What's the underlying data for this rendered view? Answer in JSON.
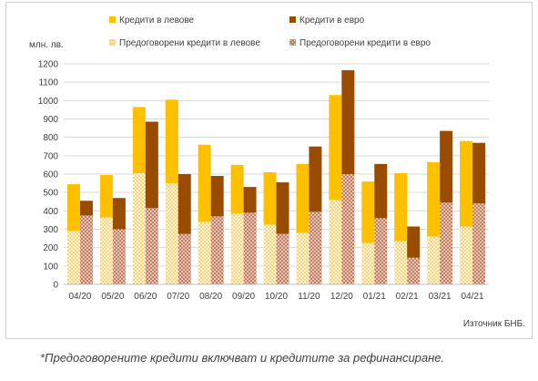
{
  "chart_data": {
    "type": "bar",
    "stacked_pairs": true,
    "ylabel": "млн. лв.",
    "ylim": [
      0,
      1200
    ],
    "yticks": [
      0,
      100,
      200,
      300,
      400,
      500,
      600,
      700,
      800,
      900,
      1000,
      1100,
      1200
    ],
    "grid": true,
    "legend_position": "top",
    "categories": [
      "04/20",
      "05/20",
      "06/20",
      "07/20",
      "08/20",
      "09/20",
      "10/20",
      "11/20",
      "12/20",
      "01/21",
      "02/21",
      "03/21",
      "04/21"
    ],
    "series": [
      {
        "name": "Кредити в левове",
        "color": "#FFC000",
        "pattern": "solid",
        "group": "bgn",
        "values": [
          255,
          230,
          360,
          455,
          420,
          265,
          285,
          375,
          570,
          335,
          370,
          405,
          465
        ]
      },
      {
        "name": "Кредити в евро",
        "color": "#994C00",
        "pattern": "solid",
        "group": "eur",
        "values": [
          80,
          170,
          470,
          325,
          220,
          140,
          280,
          355,
          565,
          295,
          170,
          390,
          330
        ]
      },
      {
        "name": "Предоговорени кредити в левове",
        "color": "#FFE699",
        "pattern": "dots",
        "group": "bgn",
        "values": [
          290,
          365,
          605,
          550,
          340,
          385,
          325,
          280,
          460,
          225,
          235,
          260,
          315
        ]
      },
      {
        "name": "Предоговорени кредити в евро",
        "color": "#C9876E",
        "pattern": "hatch",
        "group": "eur",
        "values": [
          375,
          300,
          415,
          275,
          370,
          390,
          275,
          395,
          600,
          360,
          145,
          445,
          440
        ]
      }
    ]
  },
  "legend": {
    "bgn_label": "Кредити в левове",
    "eur_label": "Кредити в евро",
    "bgn_refi_label": "Предоговорени кредити в левове",
    "eur_refi_label": "Предоговорени кредити в евро"
  },
  "unit_label": "млн. лв.",
  "source_note": "Източник БНБ.",
  "footnote": "*Предоговорените кредити включват и кредитите за рефинансиране."
}
